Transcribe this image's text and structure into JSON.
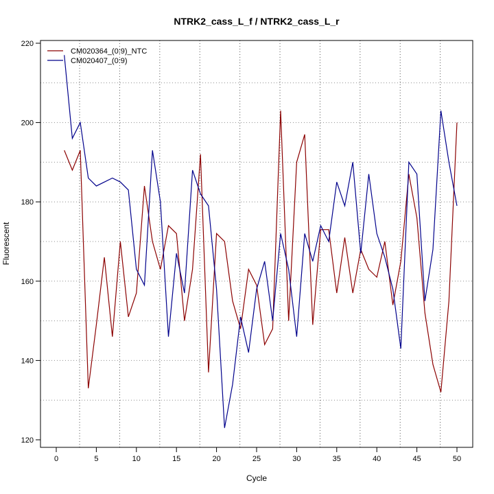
{
  "chart_data": {
    "type": "line",
    "title": "NTRK2_cass_L_f / NTRK2_cass_L_r",
    "xlabel": "Cycle",
    "ylabel": "Fluorescent",
    "xlim": [
      -2,
      52
    ],
    "ylim": [
      120,
      220
    ],
    "xticks": [
      0,
      5,
      10,
      15,
      20,
      25,
      30,
      35,
      40,
      45,
      50
    ],
    "yticks": [
      120,
      140,
      160,
      180,
      200,
      220
    ],
    "grid": true,
    "legend_position": "top-left",
    "series": [
      {
        "name": "CM020364_(0:9)_NTC",
        "color": "#8b0000",
        "x": [
          1,
          2,
          3,
          4,
          5,
          6,
          7,
          8,
          9,
          10,
          11,
          12,
          13,
          14,
          15,
          16,
          17,
          18,
          19,
          20,
          21,
          22,
          23,
          24,
          25,
          26,
          27,
          28,
          29,
          30,
          31,
          32,
          33,
          34,
          35,
          36,
          37,
          38,
          39,
          40,
          41,
          42,
          43,
          44,
          45,
          46,
          47,
          48,
          49,
          50
        ],
        "values": [
          193,
          188,
          193,
          133,
          149,
          166,
          146,
          170,
          151,
          157,
          184,
          170,
          163,
          174,
          172,
          150,
          163,
          192,
          137,
          172,
          170,
          155,
          148,
          163,
          159,
          144,
          148,
          203,
          150,
          190,
          197,
          149,
          173,
          173,
          157,
          171,
          157,
          168,
          163,
          161,
          170,
          154,
          165,
          187,
          176,
          152,
          139,
          132,
          155,
          200
        ]
      },
      {
        "name": "CM020407_(0:9)",
        "color": "#00008b",
        "x": [
          1,
          2,
          3,
          4,
          5,
          6,
          7,
          8,
          9,
          10,
          11,
          12,
          13,
          14,
          15,
          16,
          17,
          18,
          19,
          20,
          21,
          22,
          23,
          24,
          25,
          26,
          27,
          28,
          29,
          30,
          31,
          32,
          33,
          34,
          35,
          36,
          37,
          38,
          39,
          40,
          41,
          42,
          43,
          44,
          45,
          46,
          47,
          48,
          49,
          50
        ],
        "values": [
          217,
          196,
          200,
          186,
          184,
          185,
          186,
          185,
          183,
          163,
          159,
          193,
          180,
          146,
          167,
          157,
          188,
          182,
          179,
          158,
          123,
          134,
          151,
          142,
          158,
          165,
          150,
          172,
          163,
          146,
          172,
          165,
          174,
          170,
          185,
          179,
          190,
          167,
          187,
          172,
          166,
          158,
          143,
          190,
          187,
          155,
          168,
          203,
          190,
          179
        ]
      }
    ]
  }
}
